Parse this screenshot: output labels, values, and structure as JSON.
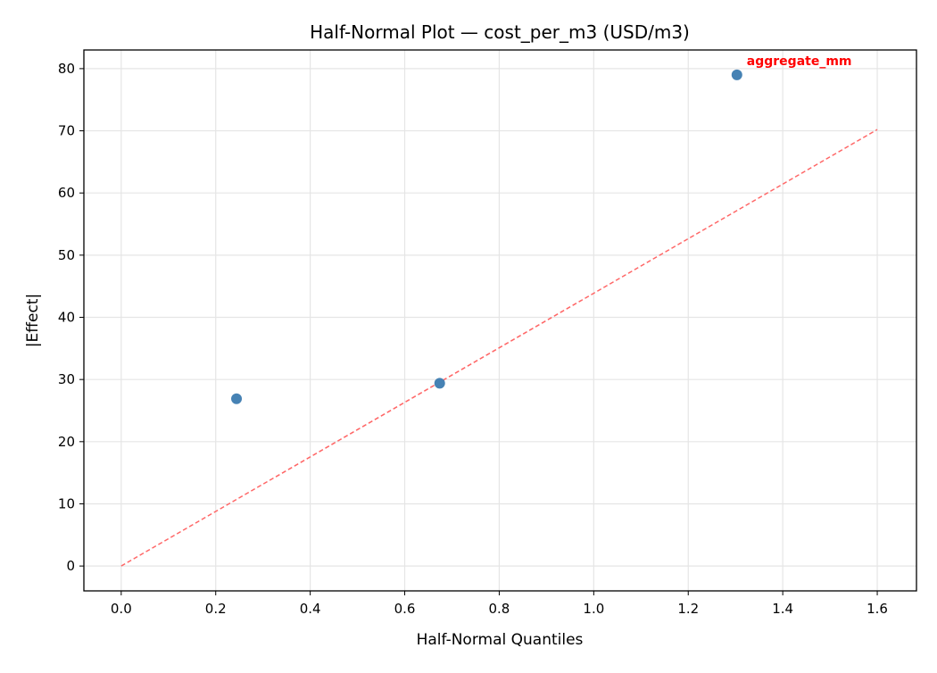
{
  "chart_data": {
    "type": "scatter",
    "title": "Half-Normal Plot — cost_per_m3 (USD/m3)",
    "xlabel": "Half-Normal Quantiles",
    "ylabel": "|Effect|",
    "xlim": [
      -0.079,
      1.683
    ],
    "ylim": [
      -4.0,
      83.0
    ],
    "xticks": [
      0.0,
      0.2,
      0.4,
      0.6,
      0.8,
      1.0,
      1.2,
      1.4,
      1.6
    ],
    "xtick_labels": [
      "0.0",
      "0.2",
      "0.4",
      "0.6",
      "0.8",
      "1.0",
      "1.2",
      "1.4",
      "1.6"
    ],
    "yticks": [
      0,
      10,
      20,
      30,
      40,
      50,
      60,
      70,
      80
    ],
    "ytick_labels": [
      "0",
      "10",
      "20",
      "30",
      "40",
      "50",
      "60",
      "70",
      "80"
    ],
    "grid": true,
    "points": [
      {
        "x": 0.244,
        "y": 26.9
      },
      {
        "x": 0.674,
        "y": 29.4
      },
      {
        "x": 1.303,
        "y": 79.0
      }
    ],
    "reference_line": {
      "x": [
        0.0,
        1.6
      ],
      "y": [
        0.0,
        70.2
      ],
      "style": "dashed"
    },
    "annotations": [
      {
        "text": "aggregate_mm",
        "x": 1.303,
        "y": 79.0,
        "color": "#ff0000",
        "weight": "bold"
      }
    ],
    "colors": {
      "points": "#4682b4",
      "reference_line": "#ff6666",
      "annotation": "#ff0000",
      "grid": "#e5e5e5"
    }
  }
}
